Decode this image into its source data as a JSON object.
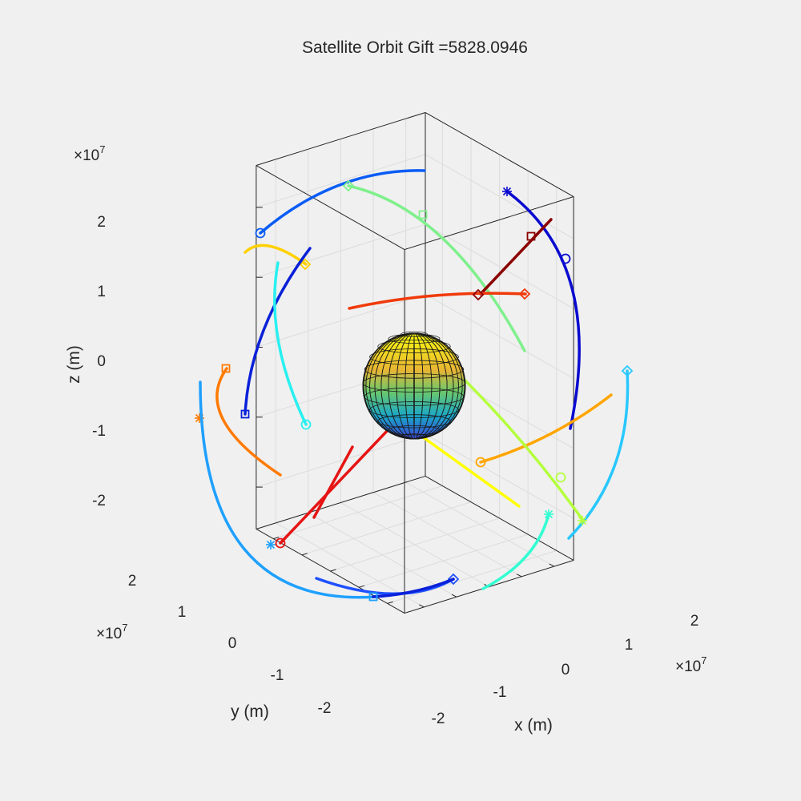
{
  "chart_data": {
    "type": "line",
    "title": "Satellite Orbit Gift =5828.0946",
    "xlabel": "x (m)",
    "ylabel": "y (m)",
    "zlabel": "z (m)",
    "exponent_label": "×10",
    "exponent_power": "7",
    "xticks": [
      "-2",
      "-1",
      "0",
      "1",
      "2"
    ],
    "yticks": [
      "-2",
      "-1",
      "0",
      "1",
      "2"
    ],
    "zticks": [
      "-2",
      "-1",
      "0",
      "1",
      "2"
    ],
    "axis_limits": {
      "x": [
        -2.6,
        2.6
      ],
      "y": [
        -2.6,
        2.6
      ],
      "z": [
        -2.6,
        2.6
      ]
    },
    "grid": true,
    "box": true,
    "view": "3d",
    "central_body": {
      "name": "sphere",
      "colormap": "parula"
    },
    "orbits": [
      {
        "color": "#0a5cf5",
        "marker": "o",
        "arc": [
          [
            0.8,
            0.25
          ],
          [
            -1.5,
            -0.26
          ],
          [
            -2.6,
            -0.9
          ]
        ]
      },
      {
        "color": "#7ff08c",
        "marker": "diamond",
        "arc": [
          [
            -0.95,
            -0.65
          ],
          [
            1.1,
            0.35
          ],
          [
            2.55,
            1.05
          ]
        ]
      },
      {
        "color": "#0a0ad0",
        "marker": "*",
        "arc": [
          [
            -0.6,
            -0.8
          ],
          [
            0.6,
            0.5
          ],
          [
            1.3,
            1.1
          ]
        ]
      },
      {
        "color": "#8b0000",
        "marker": "square",
        "arc": [
          [
            1.2,
            0.93
          ],
          [
            0.85,
            0.5
          ],
          [
            1.55,
            1.62
          ]
        ]
      },
      {
        "color": "#f03a0a",
        "marker": "diamond",
        "arc": [
          [
            -0.6,
            0.1
          ],
          [
            -2.0,
            -0.8
          ],
          [
            -2.6,
            -1.15
          ]
        ]
      },
      {
        "color": "#ffd000",
        "marker": "diamond",
        "arc": [
          [
            -0.45,
            0.78
          ],
          [
            -1.0,
            0.9
          ],
          [
            -1.4,
            1.05
          ]
        ]
      },
      {
        "color": "#0a20d8",
        "marker": "square",
        "arc": [
          [
            -0.75,
            0.85
          ],
          [
            -0.3,
            0.3
          ],
          [
            0.25,
            -0.95
          ]
        ]
      },
      {
        "color": "#28f0f0",
        "marker": "o",
        "arc": [
          [
            0.8,
            2.2
          ],
          [
            0.45,
            1.7
          ],
          [
            0.35,
            1.2
          ]
        ]
      },
      {
        "color": "#ff7a00",
        "marker": "*",
        "arc": [
          [
            1.95,
            0.55
          ],
          [
            1.5,
            0.85
          ],
          [
            0.8,
            1.15
          ]
        ]
      },
      {
        "color": "#ffa500",
        "marker": "o",
        "arc": [
          [
            0.15,
            -1.3
          ],
          [
            -1.2,
            -1.6
          ],
          [
            -2.3,
            -1.95
          ]
        ]
      },
      {
        "color": "#28c8ff",
        "marker": "diamond",
        "arc": [
          [
            1.35,
            -0.75
          ],
          [
            1.75,
            -1.1
          ],
          [
            2.1,
            -1.3
          ]
        ]
      },
      {
        "color": "#b4ff3c",
        "marker": "*",
        "arc": [
          [
            0.55,
            -0.5
          ],
          [
            1.2,
            -1.0
          ],
          [
            1.95,
            -1.6
          ]
        ]
      },
      {
        "color": "#32ffd2",
        "marker": "*",
        "arc": [
          [
            1.62,
            -2.0
          ],
          [
            2.05,
            -1.65
          ],
          [
            2.55,
            -1.25
          ]
        ]
      },
      {
        "color": "#1ea0ff",
        "marker": "*",
        "arc": [
          [
            1.95,
            0.25
          ],
          [
            0.25,
            2.0
          ],
          [
            2.3,
            1.4
          ]
        ]
      },
      {
        "color": "#1e50ff",
        "marker": "diamond",
        "arc": [
          [
            -0.8,
            -1.55
          ],
          [
            -1.0,
            -1.05
          ],
          [
            -1.45,
            -0.9
          ]
        ]
      },
      {
        "color": "#e61414",
        "marker": "o",
        "arc": [
          [
            0.05,
            -0.15
          ],
          [
            1.2,
            1.2
          ],
          [
            2.05,
            1.9
          ]
        ]
      },
      {
        "color": "#ffff00",
        "marker": "none",
        "arc": [
          [
            -0.2,
            -0.7
          ],
          [
            -0.35,
            -1.2
          ],
          [
            -0.4,
            -1.5
          ]
        ]
      }
    ]
  }
}
